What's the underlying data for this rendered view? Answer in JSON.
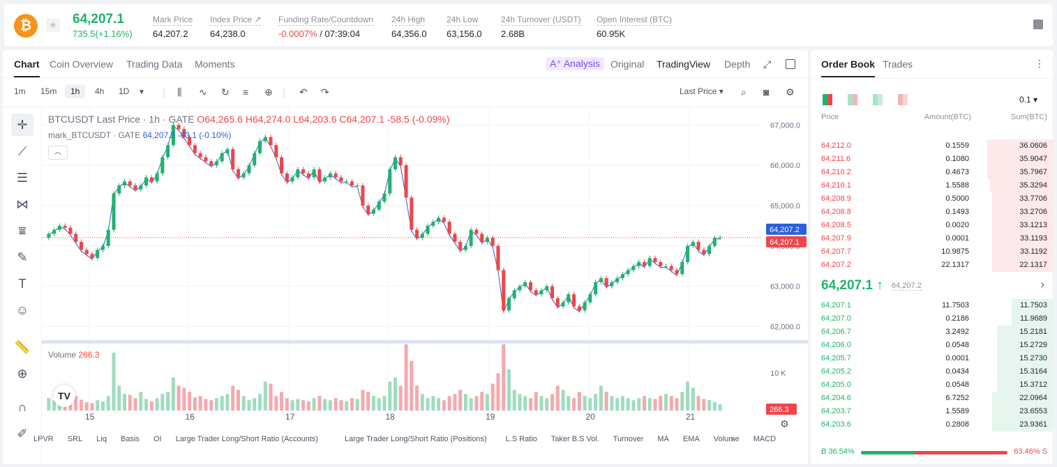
{
  "ticker": {
    "coin_icon": "bitcoin-icon",
    "last_price": "64,207.1",
    "change": "735.5(+1.16%)",
    "stats": [
      {
        "label": "Mark Price",
        "value": "64,207.2"
      },
      {
        "label": "Index Price ↗",
        "value": "64,238.0"
      },
      {
        "label": "Funding Rate/Countdown",
        "value_neg": "-0.0007%",
        "value": " / 07:39:04"
      },
      {
        "label": "24h High",
        "value": "64,356.0"
      },
      {
        "label": "24h Low",
        "value": "63,156.0"
      },
      {
        "label": "24h Turnover (USDT)",
        "value": "2.68B"
      },
      {
        "label": "Open Interest (BTC)",
        "value": "60.95K"
      }
    ]
  },
  "chart_tabs": [
    "Chart",
    "Coin Overview",
    "Trading Data",
    "Moments"
  ],
  "view_tabs": {
    "analysis": "A⁺ Analysis",
    "original": "Original",
    "tradingview": "TradingView",
    "depth": "Depth"
  },
  "timeframes": [
    "1m",
    "15m",
    "1h",
    "4h",
    "1D"
  ],
  "price_type": "Last Price ▾",
  "legend": {
    "main": "BTCUSDT Last Price · 1h · GATE",
    "o": "O64,265.6",
    "h": "H64,274.0",
    "l": "L64,203.6",
    "c": "C64,207.1",
    "chg": "-58.5 (-0.09%)",
    "mark": "mark_BTCUSDT · GATE",
    "mark_val": "64,207.2 -63.1 (-0.10%)",
    "volume_label": "Volume",
    "volume_val": "266.3"
  },
  "price_labels": {
    "mark": "64,207.2",
    "last": "64,207.1",
    "vol": "266.3"
  },
  "indicators": [
    "LPVR",
    "SRL",
    "Liq",
    "Basis",
    "OI",
    "Large Trader Long/Short Ratio (Accounts)",
    "Large Trader Long/Short Ratio (Positions)",
    "L.S Ratio",
    "Taker B.S Vol.",
    "Turnover",
    "MA",
    "EMA",
    "Volume",
    "MACD"
  ],
  "chart_data": {
    "type": "candlestick",
    "x_ticks": [
      "15",
      "16",
      "17",
      "18",
      "19",
      "20",
      "21"
    ],
    "y_ticks": [
      "67,000.0",
      "66,000.0",
      "65,000.0",
      "64,000.0",
      "63,000.0",
      "62,000.0"
    ],
    "ylim": [
      61800,
      67300
    ],
    "volume_ticks": [
      "10 K"
    ],
    "volume_max": 16000,
    "closes": [
      64300,
      64400,
      64500,
      64450,
      64300,
      64100,
      63900,
      63800,
      63700,
      63900,
      64000,
      64400,
      65300,
      65500,
      65600,
      65500,
      65400,
      65500,
      65700,
      65600,
      65800,
      66200,
      66500,
      67000,
      66900,
      66700,
      66500,
      66300,
      66200,
      66100,
      66000,
      66100,
      66300,
      66400,
      65900,
      65700,
      65800,
      66000,
      66300,
      66600,
      66700,
      66500,
      66200,
      65800,
      65600,
      65700,
      65900,
      65800,
      65700,
      65900,
      65600,
      65700,
      65800,
      65700,
      65600,
      65600,
      65500,
      65500,
      65000,
      64800,
      64900,
      65100,
      65300,
      65900,
      66200,
      66000,
      65200,
      64400,
      64200,
      64300,
      64500,
      64600,
      64700,
      64600,
      64300,
      64100,
      63900,
      64000,
      64400,
      64300,
      64100,
      64200,
      64000,
      63400,
      62400,
      62700,
      62900,
      63000,
      63100,
      62900,
      62800,
      62900,
      63000,
      62700,
      62500,
      62600,
      62800,
      62500,
      62400,
      62600,
      62800,
      63100,
      63200,
      63000,
      63100,
      63200,
      63300,
      63400,
      63500,
      63600,
      63500,
      63700,
      63600,
      63500,
      63500,
      63400,
      63300,
      63600,
      64000,
      64100,
      63900,
      63800,
      64000,
      64200,
      64207
    ],
    "volumes": [
      3000,
      2500,
      2800,
      2200,
      4000,
      3500,
      2600,
      2000,
      1800,
      2500,
      2200,
      3500,
      14000,
      6000,
      4000,
      3800,
      3000,
      4500,
      2800,
      2200,
      3000,
      4000,
      4500,
      8000,
      6000,
      5500,
      4500,
      3200,
      3500,
      2800,
      2500,
      3000,
      3500,
      4000,
      6000,
      5000,
      3500,
      2500,
      3000,
      4000,
      7000,
      6500,
      3500,
      4500,
      3000,
      2500,
      2800,
      2500,
      2200,
      3000,
      3500,
      2800,
      2500,
      3000,
      2500,
      2200,
      3000,
      2800,
      5000,
      4500,
      3500,
      3000,
      3500,
      7000,
      8000,
      6000,
      16000,
      12000,
      6000,
      4000,
      3000,
      3500,
      3000,
      2500,
      3500,
      4000,
      5000,
      4000,
      3000,
      3500,
      4500,
      4000,
      6500,
      9000,
      16000,
      10000,
      5000,
      4000,
      3500,
      3000,
      4500,
      3500,
      3000,
      4000,
      6000,
      5000,
      3500,
      3000,
      4500,
      3500,
      3000,
      4000,
      6000,
      4500,
      3500,
      3000,
      3500,
      3000,
      2500,
      3000,
      3500,
      3000,
      2800,
      3500,
      4000,
      3500,
      3000,
      4500,
      7000,
      5500,
      3500,
      2800,
      2500,
      2000,
      1500
    ]
  },
  "orderbook": {
    "tabs": [
      "Order Book",
      "Trades"
    ],
    "step": "0.1 ▾",
    "headers": [
      "Price",
      "Amount(BTC)",
      "Sum(BTC)"
    ],
    "asks": [
      {
        "p": "64,212.0",
        "a": "0.1559",
        "s": "36.0606",
        "depth": 0.27
      },
      {
        "p": "64,211.6",
        "a": "0.1080",
        "s": "35.9047",
        "depth": 0.27
      },
      {
        "p": "64,210.2",
        "a": "0.4673",
        "s": "35.7967",
        "depth": 0.27
      },
      {
        "p": "64,210.1",
        "a": "1.5588",
        "s": "35.3294",
        "depth": 0.26
      },
      {
        "p": "64,208.9",
        "a": "0.5000",
        "s": "33.7706",
        "depth": 0.25
      },
      {
        "p": "64,208.8",
        "a": "0.1493",
        "s": "33.2706",
        "depth": 0.25
      },
      {
        "p": "64,208.5",
        "a": "0.0020",
        "s": "33.1213",
        "depth": 0.25
      },
      {
        "p": "64,207.9",
        "a": "0.0001",
        "s": "33.1193",
        "depth": 0.25
      },
      {
        "p": "64,207.7",
        "a": "10.9875",
        "s": "33.1192",
        "depth": 0.25
      },
      {
        "p": "64,207.2",
        "a": "22.1317",
        "s": "22.1317",
        "depth": 0.25
      }
    ],
    "mid": {
      "price": "64,207.1 ↑",
      "mark": "64,207.2"
    },
    "bids": [
      {
        "p": "64,207.1",
        "a": "11.7503",
        "s": "11.7503",
        "depth": 0.17
      },
      {
        "p": "64,207.0",
        "a": "0.2186",
        "s": "11.9689",
        "depth": 0.17
      },
      {
        "p": "64,206.7",
        "a": "3.2492",
        "s": "15.2181",
        "depth": 0.23
      },
      {
        "p": "64,206.0",
        "a": "0.0548",
        "s": "15.2729",
        "depth": 0.23
      },
      {
        "p": "64,205.7",
        "a": "0.0001",
        "s": "15.2730",
        "depth": 0.23
      },
      {
        "p": "64,205.2",
        "a": "0.0434",
        "s": "15.3164",
        "depth": 0.23
      },
      {
        "p": "64,205.0",
        "a": "0.0548",
        "s": "15.3712",
        "depth": 0.23
      },
      {
        "p": "64,204.6",
        "a": "6.7252",
        "s": "22.0964",
        "depth": 0.25
      },
      {
        "p": "64,203.7",
        "a": "1.5589",
        "s": "23.6553",
        "depth": 0.25
      },
      {
        "p": "64,203.6",
        "a": "0.2808",
        "s": "23.9361",
        "depth": 0.25
      }
    ],
    "buy_ratio": "B 36.54%",
    "sell_ratio": "63.46% S",
    "buy_fraction": 0.3654
  },
  "colors": {
    "up": "#20b26c",
    "down": "#ef454a",
    "mark": "#2b5fd9"
  }
}
